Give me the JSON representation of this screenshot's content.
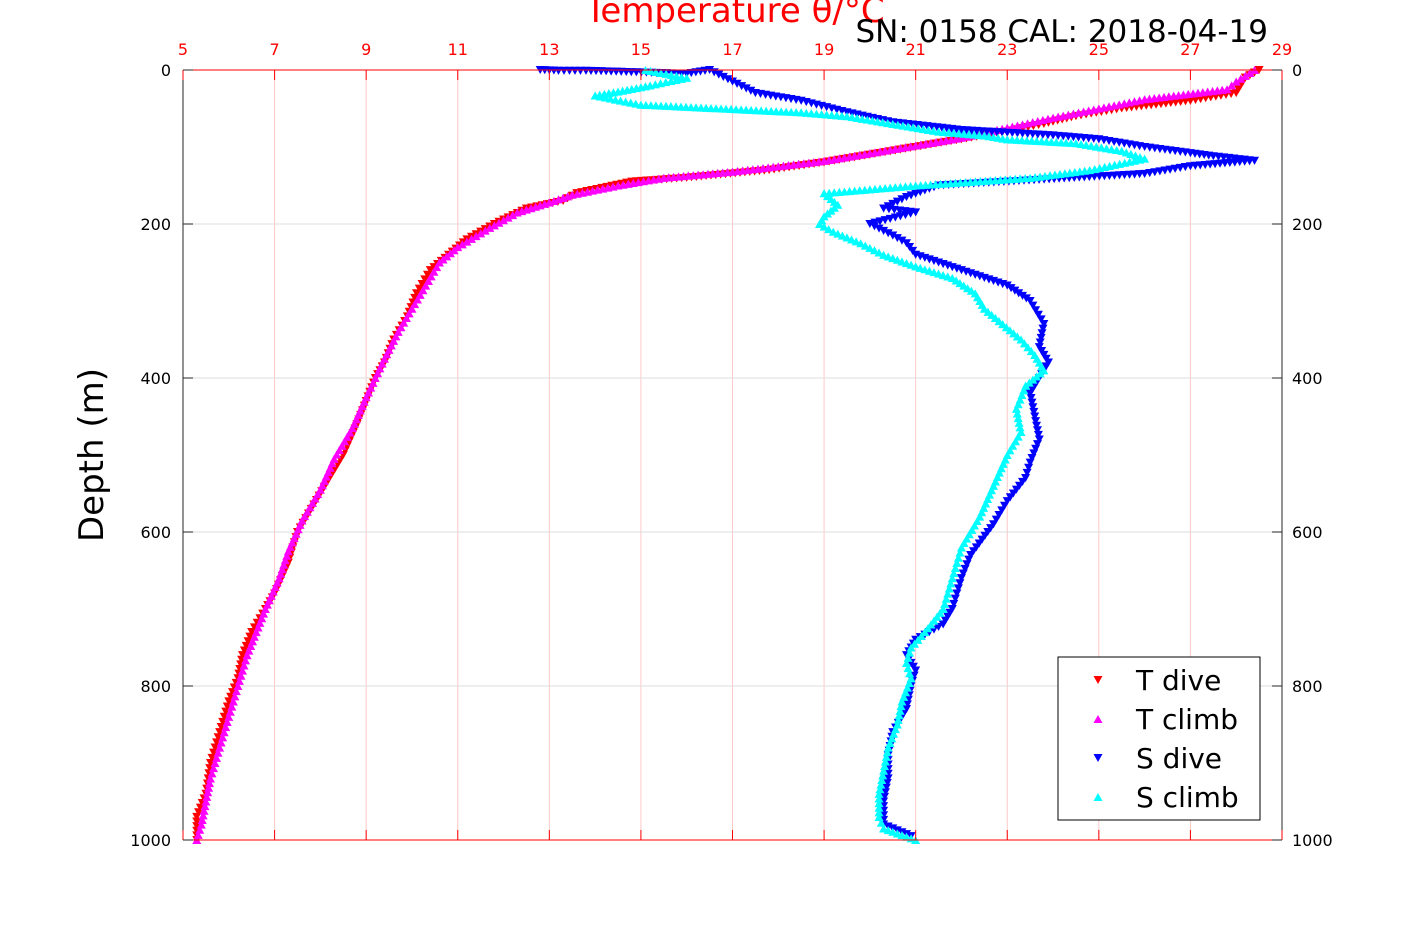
{
  "chart_data": {
    "type": "scatter",
    "title": "Temperature θ/°C",
    "annotation": "SN: 0158  CAL: 2018-04-19",
    "ylabel": "Depth (m)",
    "xlim": [
      5,
      29
    ],
    "ylim": [
      1000,
      0
    ],
    "x_ticks": [
      5,
      7,
      9,
      11,
      13,
      15,
      17,
      19,
      21,
      23,
      25,
      27,
      29
    ],
    "y_ticks": [
      0,
      200,
      400,
      600,
      800,
      1000
    ],
    "grid": true,
    "legend_position": "bottom-right",
    "series": [
      {
        "name": "T dive",
        "color": "#ff0000",
        "marker": "triangle-down",
        "points": [
          [
            28.5,
            0
          ],
          [
            28.2,
            10
          ],
          [
            28.1,
            20
          ],
          [
            28.0,
            30
          ],
          [
            27.0,
            40
          ],
          [
            25.5,
            50
          ],
          [
            24.5,
            60
          ],
          [
            23.8,
            70
          ],
          [
            23.0,
            80
          ],
          [
            22.0,
            90
          ],
          [
            21.0,
            100
          ],
          [
            20.0,
            110
          ],
          [
            19.0,
            120
          ],
          [
            17.8,
            130
          ],
          [
            16.0,
            140
          ],
          [
            14.8,
            145
          ],
          [
            13.6,
            160
          ],
          [
            13.3,
            170
          ],
          [
            12.5,
            180
          ],
          [
            11.8,
            200
          ],
          [
            11.2,
            220
          ],
          [
            10.8,
            240
          ],
          [
            10.4,
            260
          ],
          [
            10.1,
            290
          ],
          [
            9.9,
            320
          ],
          [
            9.6,
            350
          ],
          [
            9.4,
            380
          ],
          [
            9.2,
            400
          ],
          [
            9.0,
            430
          ],
          [
            8.8,
            460
          ],
          [
            8.5,
            500
          ],
          [
            8.2,
            530
          ],
          [
            7.8,
            570
          ],
          [
            7.5,
            600
          ],
          [
            7.3,
            640
          ],
          [
            7.0,
            680
          ],
          [
            6.8,
            700
          ],
          [
            6.5,
            730
          ],
          [
            6.3,
            760
          ],
          [
            6.2,
            790
          ],
          [
            6.0,
            820
          ],
          [
            5.8,
            860
          ],
          [
            5.6,
            900
          ],
          [
            5.5,
            940
          ],
          [
            5.3,
            970
          ],
          [
            5.3,
            1000
          ]
        ]
      },
      {
        "name": "T climb",
        "color": "#ff00ff",
        "marker": "triangle-up",
        "points": [
          [
            28.4,
            0
          ],
          [
            28.0,
            15
          ],
          [
            27.8,
            25
          ],
          [
            26.0,
            38
          ],
          [
            25.0,
            50
          ],
          [
            24.0,
            62
          ],
          [
            23.0,
            75
          ],
          [
            22.0,
            88
          ],
          [
            21.0,
            98
          ],
          [
            20.0,
            108
          ],
          [
            19.0,
            118
          ],
          [
            18.0,
            125
          ],
          [
            17.0,
            132
          ],
          [
            15.5,
            140
          ],
          [
            14.5,
            150
          ],
          [
            13.5,
            162
          ],
          [
            13.0,
            172
          ],
          [
            12.3,
            185
          ],
          [
            11.7,
            205
          ],
          [
            11.0,
            230
          ],
          [
            10.6,
            250
          ],
          [
            10.3,
            280
          ],
          [
            10.0,
            310
          ],
          [
            9.7,
            340
          ],
          [
            9.4,
            375
          ],
          [
            9.2,
            400
          ],
          [
            9.0,
            425
          ],
          [
            8.7,
            465
          ],
          [
            8.3,
            505
          ],
          [
            8.0,
            545
          ],
          [
            7.6,
            585
          ],
          [
            7.3,
            625
          ],
          [
            7.1,
            660
          ],
          [
            6.8,
            700
          ],
          [
            6.6,
            730
          ],
          [
            6.4,
            760
          ],
          [
            6.2,
            800
          ],
          [
            6.0,
            840
          ],
          [
            5.8,
            880
          ],
          [
            5.6,
            920
          ],
          [
            5.5,
            950
          ],
          [
            5.4,
            980
          ],
          [
            5.3,
            1000
          ]
        ]
      },
      {
        "name": "S dive",
        "color": "#0000ff",
        "marker": "triangle-down",
        "points": [
          [
            12.8,
            0
          ],
          [
            13.2,
            1
          ],
          [
            13.8,
            1
          ],
          [
            16.0,
            5
          ],
          [
            16.5,
            0
          ],
          [
            17.5,
            30
          ],
          [
            18.5,
            40
          ],
          [
            19.5,
            55
          ],
          [
            20.5,
            68
          ],
          [
            22.0,
            78
          ],
          [
            24.0,
            85
          ],
          [
            25.0,
            90
          ],
          [
            26.0,
            100
          ],
          [
            27.0,
            108
          ],
          [
            27.5,
            112
          ],
          [
            28.4,
            118
          ],
          [
            27.0,
            125
          ],
          [
            26.0,
            135
          ],
          [
            21.5,
            150
          ],
          [
            20.8,
            165
          ],
          [
            20.3,
            180
          ],
          [
            21.0,
            185
          ],
          [
            20.0,
            200
          ],
          [
            20.5,
            215
          ],
          [
            20.8,
            225
          ],
          [
            21.0,
            240
          ],
          [
            21.5,
            250
          ],
          [
            22.0,
            260
          ],
          [
            23.0,
            280
          ],
          [
            23.5,
            300
          ],
          [
            23.8,
            330
          ],
          [
            23.7,
            360
          ],
          [
            23.9,
            380
          ],
          [
            23.7,
            400
          ],
          [
            23.5,
            420
          ],
          [
            23.6,
            450
          ],
          [
            23.7,
            480
          ],
          [
            23.5,
            510
          ],
          [
            23.4,
            530
          ],
          [
            23.0,
            560
          ],
          [
            22.7,
            590
          ],
          [
            22.2,
            630
          ],
          [
            22.0,
            660
          ],
          [
            21.8,
            700
          ],
          [
            21.6,
            720
          ],
          [
            21.0,
            740
          ],
          [
            20.8,
            760
          ],
          [
            21.0,
            780
          ],
          [
            20.9,
            800
          ],
          [
            20.8,
            830
          ],
          [
            20.5,
            860
          ],
          [
            20.4,
            890
          ],
          [
            20.4,
            920
          ],
          [
            20.3,
            950
          ],
          [
            20.3,
            980
          ],
          [
            20.9,
            995
          ]
        ]
      },
      {
        "name": "S climb",
        "color": "#00ffff",
        "marker": "triangle-up",
        "points": [
          [
            15.1,
            0
          ],
          [
            16.0,
            10
          ],
          [
            15.2,
            20
          ],
          [
            14.5,
            28
          ],
          [
            14.0,
            33
          ],
          [
            15.0,
            45
          ],
          [
            18.5,
            55
          ],
          [
            19.5,
            60
          ],
          [
            20.5,
            70
          ],
          [
            21.5,
            80
          ],
          [
            22.5,
            85
          ],
          [
            23.0,
            90
          ],
          [
            24.5,
            95
          ],
          [
            25.5,
            105
          ],
          [
            26.0,
            115
          ],
          [
            24.8,
            130
          ],
          [
            23.5,
            140
          ],
          [
            21.0,
            150
          ],
          [
            19.0,
            160
          ],
          [
            19.3,
            175
          ],
          [
            19.0,
            190
          ],
          [
            18.9,
            200
          ],
          [
            19.2,
            210
          ],
          [
            19.8,
            225
          ],
          [
            20.3,
            240
          ],
          [
            21.0,
            255
          ],
          [
            21.8,
            270
          ],
          [
            22.3,
            290
          ],
          [
            22.5,
            310
          ],
          [
            22.9,
            330
          ],
          [
            23.3,
            350
          ],
          [
            23.6,
            370
          ],
          [
            23.8,
            390
          ],
          [
            23.4,
            410
          ],
          [
            23.2,
            440
          ],
          [
            23.3,
            470
          ],
          [
            23.0,
            500
          ],
          [
            22.7,
            540
          ],
          [
            22.4,
            580
          ],
          [
            22.0,
            620
          ],
          [
            21.8,
            660
          ],
          [
            21.6,
            700
          ],
          [
            21.2,
            730
          ],
          [
            20.9,
            750
          ],
          [
            20.8,
            770
          ],
          [
            20.9,
            790
          ],
          [
            20.7,
            820
          ],
          [
            20.6,
            850
          ],
          [
            20.4,
            880
          ],
          [
            20.3,
            910
          ],
          [
            20.2,
            940
          ],
          [
            20.2,
            970
          ],
          [
            20.3,
            985
          ],
          [
            21.0,
            1000
          ]
        ]
      }
    ]
  }
}
